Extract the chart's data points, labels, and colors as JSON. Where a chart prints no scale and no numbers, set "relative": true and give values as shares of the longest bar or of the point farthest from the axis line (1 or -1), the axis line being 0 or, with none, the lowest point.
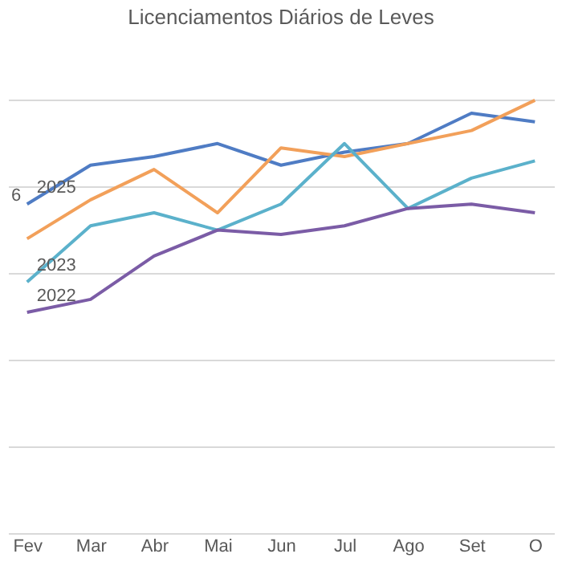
{
  "chart_data": {
    "type": "line",
    "title": "Licenciamentos Diários de Leves",
    "relative": true,
    "grid": "y",
    "line_style": "solid",
    "marker": "none",
    "categories": [
      "Fev",
      "Mar",
      "Abr",
      "Mai",
      "Jun",
      "Jul",
      "Ago",
      "Set",
      "O"
    ],
    "series": [
      {
        "name": "2025",
        "color": "#4f7cc4",
        "values": [
          0.76,
          0.85,
          0.87,
          0.9,
          0.85,
          0.88,
          0.9,
          0.97,
          0.95
        ]
      },
      {
        "color": "#f2a05a",
        "values": [
          0.68,
          0.77,
          0.84,
          0.74,
          0.89,
          0.87,
          0.9,
          0.93,
          1.0
        ]
      },
      {
        "name": "2023",
        "color": "#5bb1cb",
        "values": [
          0.58,
          0.71,
          0.74,
          0.7,
          0.76,
          0.9,
          0.75,
          0.82,
          0.86
        ]
      },
      {
        "name": "2022",
        "color": "#7b5ca6",
        "values": [
          0.51,
          0.54,
          0.64,
          0.7,
          0.69,
          0.71,
          0.75,
          0.76,
          0.74
        ]
      }
    ],
    "annotations": [
      "6"
    ]
  }
}
